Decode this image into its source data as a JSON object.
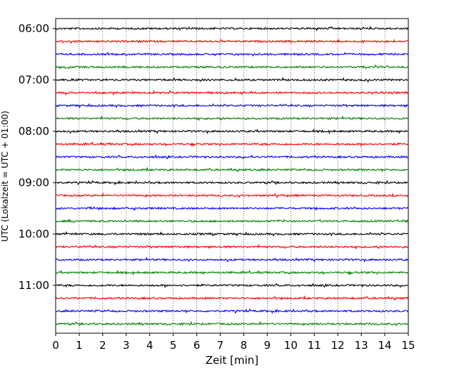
{
  "chart_data": {
    "type": "line",
    "xlabel": "Zeit  [min]",
    "ylabel": "UTC (Lokalzeit = UTC + 01:00)",
    "xlim": [
      0,
      15
    ],
    "x_ticks": [
      0,
      1,
      2,
      3,
      4,
      5,
      6,
      7,
      8,
      9,
      10,
      11,
      12,
      13,
      14,
      15
    ],
    "y_tick_labels": [
      "06:00",
      "07:00",
      "08:00",
      "09:00",
      "10:00",
      "11:00"
    ],
    "grid": "vertical dotted",
    "trace_interval_min": 15,
    "trace_colors": [
      "#000000",
      "#ff0000",
      "#0000ff",
      "#008000"
    ],
    "traces": [
      {
        "start": "06:00",
        "color": "#000000"
      },
      {
        "start": "06:15",
        "color": "#ff0000"
      },
      {
        "start": "06:30",
        "color": "#0000ff"
      },
      {
        "start": "06:45",
        "color": "#008000"
      },
      {
        "start": "07:00",
        "color": "#000000"
      },
      {
        "start": "07:15",
        "color": "#ff0000"
      },
      {
        "start": "07:30",
        "color": "#0000ff"
      },
      {
        "start": "07:45",
        "color": "#008000"
      },
      {
        "start": "08:00",
        "color": "#000000"
      },
      {
        "start": "08:15",
        "color": "#ff0000"
      },
      {
        "start": "08:30",
        "color": "#0000ff"
      },
      {
        "start": "08:45",
        "color": "#008000"
      },
      {
        "start": "09:00",
        "color": "#000000"
      },
      {
        "start": "09:15",
        "color": "#ff0000"
      },
      {
        "start": "09:30",
        "color": "#0000ff"
      },
      {
        "start": "09:45",
        "color": "#008000"
      },
      {
        "start": "10:00",
        "color": "#000000"
      },
      {
        "start": "10:15",
        "color": "#ff0000"
      },
      {
        "start": "10:30",
        "color": "#0000ff"
      },
      {
        "start": "10:45",
        "color": "#008000"
      },
      {
        "start": "11:00",
        "color": "#000000"
      },
      {
        "start": "11:15",
        "color": "#ff0000"
      },
      {
        "start": "11:30",
        "color": "#0000ff"
      },
      {
        "start": "11:45",
        "color": "#008000"
      }
    ]
  }
}
